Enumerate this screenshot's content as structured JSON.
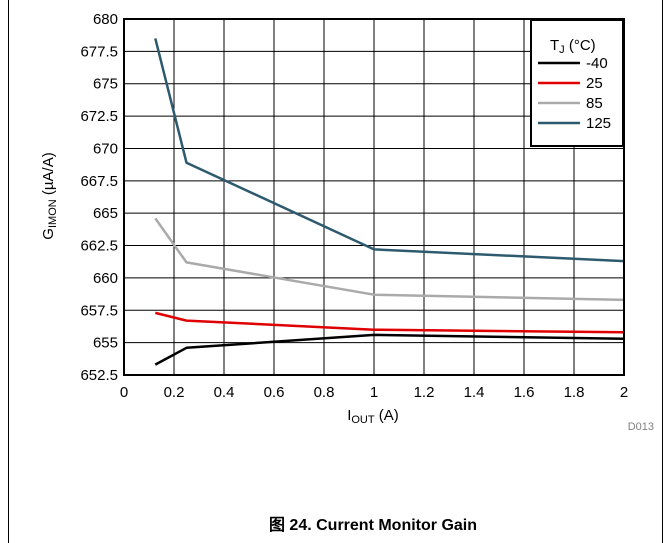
{
  "chart_data": {
    "type": "line",
    "title": "",
    "xlabel": {
      "main": "I",
      "sub": "OUT",
      "rest": " (A)"
    },
    "ylabel": {
      "main": "G",
      "sub": "IMON",
      "rest": " (µA/A)"
    },
    "xlim": [
      0,
      2
    ],
    "ylim": [
      652.5,
      680
    ],
    "xticks": [
      "0",
      "0.2",
      "0.4",
      "0.6",
      "0.8",
      "1",
      "1.2",
      "1.4",
      "1.6",
      "1.8",
      "2"
    ],
    "yticks": [
      "652.5",
      "655",
      "657.5",
      "660",
      "662.5",
      "665",
      "667.5",
      "670",
      "672.5",
      "675",
      "677.5",
      "680"
    ],
    "grid": true,
    "legend_title": {
      "main": "T",
      "sub": "J",
      "rest": " (°C)"
    },
    "legend_position": "top-right",
    "series": [
      {
        "name": "-40",
        "color": "#000000",
        "x": [
          0.125,
          0.25,
          1,
          2
        ],
        "y": [
          653.3,
          654.6,
          655.6,
          655.3
        ]
      },
      {
        "name": "25",
        "color": "#e00000",
        "x": [
          0.125,
          0.25,
          1,
          2
        ],
        "y": [
          657.3,
          656.7,
          656.0,
          655.8
        ]
      },
      {
        "name": "85",
        "color": "#aaaaaa",
        "x": [
          0.125,
          0.25,
          1,
          2
        ],
        "y": [
          664.6,
          661.2,
          658.7,
          658.3
        ]
      },
      {
        "name": "125",
        "color": "#2d5a6e",
        "x": [
          0.125,
          0.25,
          1,
          2
        ],
        "y": [
          678.5,
          668.9,
          662.2,
          661.3
        ]
      }
    ],
    "figure_id": "D013",
    "caption": "图 24. Current Monitor Gain"
  }
}
